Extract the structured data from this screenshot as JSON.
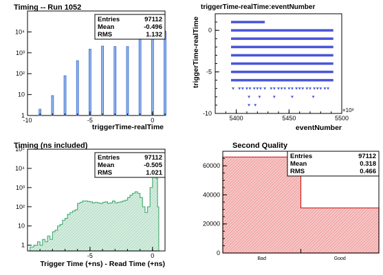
{
  "chart_data": [
    {
      "type": "bar",
      "title": "Timing -- Run 1052",
      "xlabel": "triggerTime-realTime",
      "ylabel": "",
      "log_y": true,
      "xlim": [
        -10,
        1
      ],
      "ylim": [
        1,
        100000
      ],
      "x_ticks": [
        -10,
        -5,
        0
      ],
      "y_ticks": [
        {
          "v": 1,
          "label": "1"
        },
        {
          "v": 10,
          "label": "10"
        },
        {
          "v": 100,
          "label": "10²"
        },
        {
          "v": 1000,
          "label": "10³"
        },
        {
          "v": 10000,
          "label": "10⁴"
        }
      ],
      "bins": [
        {
          "x": -9,
          "y": 2
        },
        {
          "x": -8,
          "y": 9
        },
        {
          "x": -7,
          "y": 80
        },
        {
          "x": -6,
          "y": 420
        },
        {
          "x": -5,
          "y": 1500
        },
        {
          "x": -4,
          "y": 2100
        },
        {
          "x": -3,
          "y": 2000
        },
        {
          "x": -2,
          "y": 2000
        },
        {
          "x": -1,
          "y": 32000
        },
        {
          "x": 0,
          "y": 42000
        },
        {
          "x": 1,
          "y": 11000
        }
      ],
      "stats": [
        {
          "label": "Entries",
          "value": "97112"
        },
        {
          "label": "Mean",
          "value": "-0.496"
        },
        {
          "label": "RMS",
          "value": "1.132"
        }
      ],
      "colors": {
        "fill": "#8fb5e8",
        "line": "#3a6bd0"
      }
    },
    {
      "type": "scatter",
      "title": "triggerTime-realTime:eventNumber",
      "xlabel": "eventNumber",
      "ylabel": "triggerTime-realTime",
      "xlim": [
        5380,
        5500
      ],
      "ylim": [
        -10,
        2
      ],
      "x_ticks": [
        5400,
        5450,
        5500
      ],
      "y_ticks": [
        -10,
        -5,
        0
      ],
      "x_multiplier": "×10³",
      "rows": [
        {
          "y": 1,
          "x_from": 5395,
          "x_to": 5427
        },
        {
          "y": 0,
          "x_from": 5395,
          "x_to": 5492
        },
        {
          "y": -1,
          "x_from": 5395,
          "x_to": 5492
        },
        {
          "y": -2,
          "x_from": 5395,
          "x_to": 5492
        },
        {
          "y": -3,
          "x_from": 5395,
          "x_to": 5492
        },
        {
          "y": -4,
          "x_from": 5395,
          "x_to": 5492
        },
        {
          "y": -5,
          "x_from": 5395,
          "x_to": 5492
        },
        {
          "y": -6,
          "x_from": 5395,
          "x_to": 5492
        }
      ],
      "sparse_points": [
        {
          "x": 5397,
          "y": -7
        },
        {
          "x": 5403,
          "y": -7
        },
        {
          "x": 5406,
          "y": -7
        },
        {
          "x": 5410,
          "y": -7
        },
        {
          "x": 5413,
          "y": -7
        },
        {
          "x": 5417,
          "y": -7
        },
        {
          "x": 5420,
          "y": -7
        },
        {
          "x": 5423,
          "y": -7
        },
        {
          "x": 5427,
          "y": -7
        },
        {
          "x": 5433,
          "y": -7
        },
        {
          "x": 5436,
          "y": -7
        },
        {
          "x": 5440,
          "y": -7
        },
        {
          "x": 5443,
          "y": -7
        },
        {
          "x": 5446,
          "y": -7
        },
        {
          "x": 5450,
          "y": -7
        },
        {
          "x": 5453,
          "y": -7
        },
        {
          "x": 5457,
          "y": -7
        },
        {
          "x": 5460,
          "y": -7
        },
        {
          "x": 5463,
          "y": -7
        },
        {
          "x": 5467,
          "y": -7
        },
        {
          "x": 5470,
          "y": -7
        },
        {
          "x": 5474,
          "y": -7
        },
        {
          "x": 5477,
          "y": -7
        },
        {
          "x": 5480,
          "y": -7
        },
        {
          "x": 5484,
          "y": -7
        },
        {
          "x": 5487,
          "y": -7
        },
        {
          "x": 5412,
          "y": -8
        },
        {
          "x": 5422,
          "y": -8
        },
        {
          "x": 5436,
          "y": -8
        },
        {
          "x": 5453,
          "y": -8
        },
        {
          "x": 5473,
          "y": -8
        },
        {
          "x": 5412,
          "y": -9
        },
        {
          "x": 5418,
          "y": -9
        }
      ],
      "colors": {
        "marker": "#4a56d8"
      }
    },
    {
      "type": "area",
      "title": "Timing (ns included)",
      "xlabel": "Trigger Time (+ns) - Read Time (+ns)",
      "ylabel": "",
      "log_y": true,
      "xlim": [
        -10,
        1
      ],
      "ylim": [
        0.5,
        100000
      ],
      "x_ticks": [
        -5,
        0
      ],
      "y_ticks": [
        {
          "v": 1,
          "label": "1"
        },
        {
          "v": 10,
          "label": "10"
        },
        {
          "v": 100,
          "label": "10²"
        },
        {
          "v": 1000,
          "label": "10³"
        },
        {
          "v": 10000,
          "label": "10⁴"
        },
        {
          "v": 100000,
          "label": "10⁵"
        }
      ],
      "x": [
        -9.8,
        -9.5,
        -9.2,
        -9.0,
        -8.8,
        -8.6,
        -8.4,
        -8.2,
        -8.0,
        -7.8,
        -7.6,
        -7.4,
        -7.2,
        -7.0,
        -6.8,
        -6.6,
        -6.4,
        -6.2,
        -6.0,
        -5.8,
        -5.6,
        -5.4,
        -5.2,
        -5.0,
        -4.8,
        -4.6,
        -4.4,
        -4.2,
        -4.0,
        -3.8,
        -3.6,
        -3.4,
        -3.2,
        -3.0,
        -2.8,
        -2.6,
        -2.4,
        -2.2,
        -2.0,
        -1.8,
        -1.6,
        -1.4,
        -1.2,
        -1.0,
        -0.8,
        -0.6,
        -0.4,
        -0.2,
        0.0,
        0.1,
        0.2,
        0.3,
        0.4,
        0.5
      ],
      "y": [
        0.8,
        1,
        1.5,
        1,
        2,
        1.5,
        3,
        2,
        5,
        6,
        10,
        12,
        20,
        25,
        40,
        50,
        60,
        70,
        150,
        170,
        200,
        200,
        190,
        180,
        160,
        170,
        160,
        150,
        170,
        180,
        150,
        160,
        200,
        160,
        170,
        180,
        200,
        220,
        300,
        400,
        500,
        600,
        500,
        300,
        100,
        50,
        100,
        1000,
        10000,
        40000,
        60000,
        3000,
        100,
        0.5
      ],
      "stats": [
        {
          "label": "Entries",
          "value": "97112"
        },
        {
          "label": "Mean",
          "value": "-0.505"
        },
        {
          "label": "RMS",
          "value": "1.021"
        }
      ],
      "colors": {
        "fill": "#d6ede0",
        "line": "#4fae78"
      }
    },
    {
      "type": "bar",
      "title": "Second Quality",
      "xlabel": "",
      "ylabel": "",
      "categories": [
        "Bad",
        "Good"
      ],
      "values": [
        66000,
        31000
      ],
      "ylim": [
        0,
        70000
      ],
      "y_ticks": [
        0,
        20000,
        40000,
        60000
      ],
      "stats": [
        {
          "label": "Entries",
          "value": "97112"
        },
        {
          "label": "Mean",
          "value": "0.318"
        },
        {
          "label": "RMS",
          "value": "0.466"
        }
      ],
      "colors": {
        "fill": "#f7c7c7",
        "line": "#d22020"
      }
    }
  ]
}
